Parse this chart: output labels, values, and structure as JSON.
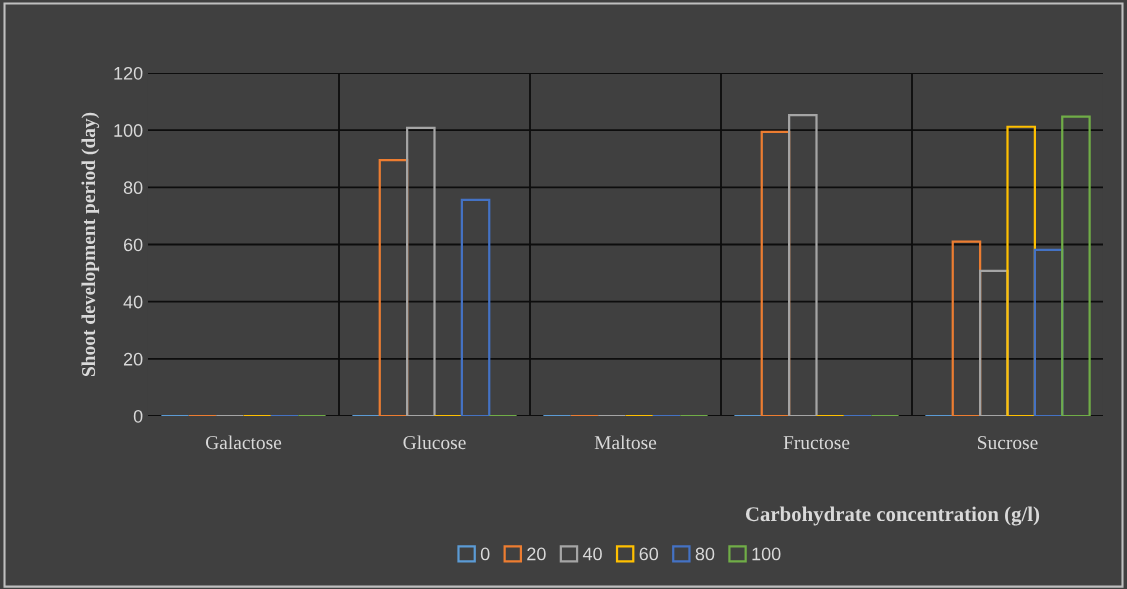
{
  "chart_data": {
    "type": "bar",
    "xlabel": "Carbohydrate concentration (g/l)",
    "ylabel": "Shoot development period (day)",
    "categories": [
      "Galactose",
      "Glucose",
      "Maltose",
      "Fructose",
      "Sucrose"
    ],
    "series": [
      {
        "name": "0",
        "color": "#5b9bd5",
        "values": [
          0,
          0,
          0,
          0,
          0
        ]
      },
      {
        "name": "20",
        "color": "#ed7d31",
        "values": [
          0,
          89.5,
          0,
          99.4,
          61
        ]
      },
      {
        "name": "40",
        "color": "#a5a5a5",
        "values": [
          0,
          100.8,
          0,
          105.3,
          50.8
        ]
      },
      {
        "name": "60",
        "color": "#ffc000",
        "values": [
          0,
          0,
          0,
          0,
          101.2
        ]
      },
      {
        "name": "80",
        "color": "#4472c4",
        "values": [
          0,
          75.6,
          0,
          0,
          58.1
        ]
      },
      {
        "name": "100",
        "color": "#70ad47",
        "values": [
          0,
          0,
          0,
          0,
          104.7
        ]
      }
    ],
    "ylim": [
      0,
      120
    ],
    "yticks": [
      0,
      20,
      40,
      60,
      80,
      100,
      120
    ],
    "grid": true,
    "legend": "bottom"
  }
}
